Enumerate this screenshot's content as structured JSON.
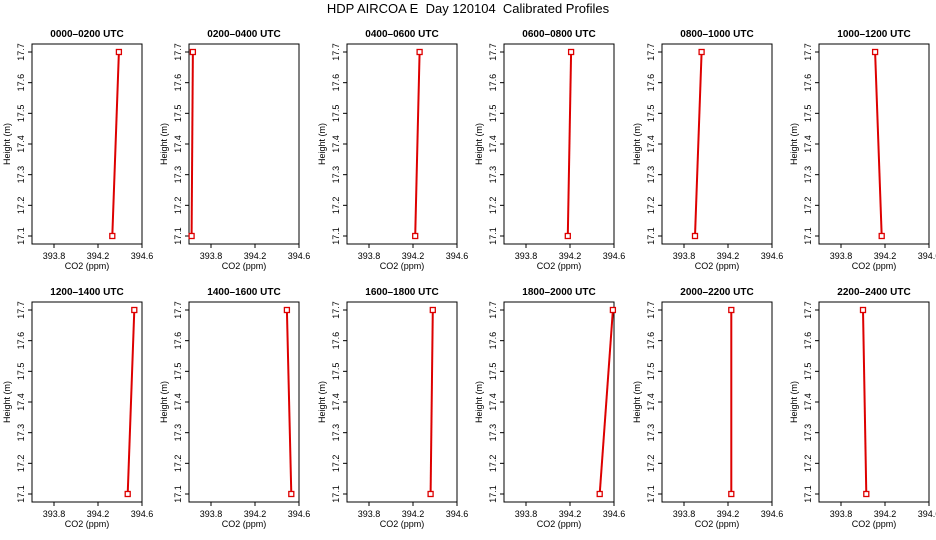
{
  "title": "HDP AIRCOA E  Day 120104  Calibrated Profiles",
  "colors": {
    "profile_line": "#dd0000",
    "axes": "#000000",
    "background": "#ffffff"
  },
  "chart_data": [
    {
      "type": "line",
      "title": "0000–0200 UTC",
      "xlabel": "CO2 (ppm)",
      "ylabel": "Height (m)",
      "xlim": [
        393.6,
        394.6
      ],
      "ylim": [
        17.1,
        17.7
      ],
      "xticks": [
        "393.8",
        "394.2",
        "394.6"
      ],
      "yticks": [
        "17.1",
        "17.2",
        "17.3",
        "17.4",
        "17.5",
        "17.6",
        "17.7"
      ],
      "series": [
        {
          "x": [
            394.33,
            394.39
          ],
          "y": [
            17.1,
            17.7
          ]
        }
      ]
    },
    {
      "type": "line",
      "title": "0200–0400 UTC",
      "xlabel": "CO2 (ppm)",
      "ylabel": "Height (m)",
      "xlim": [
        393.75,
        394.6
      ],
      "ylim": [
        17.1,
        17.7
      ],
      "xticks": [
        "393.8",
        "394.2",
        "394.6"
      ],
      "yticks": [
        "17.1",
        "17.2",
        "17.3",
        "17.4",
        "17.5",
        "17.6",
        "17.7"
      ],
      "series": [
        {
          "x": [
            393.77,
            393.78
          ],
          "y": [
            17.1,
            17.7
          ]
        }
      ]
    },
    {
      "type": "line",
      "title": "0400–0600 UTC",
      "xlabel": "CO2 (ppm)",
      "ylabel": "Height (m)",
      "xlim": [
        393.6,
        394.6
      ],
      "ylim": [
        17.1,
        17.7
      ],
      "xticks": [
        "393.8",
        "394.2",
        "394.6"
      ],
      "yticks": [
        "17.1",
        "17.2",
        "17.3",
        "17.4",
        "17.5",
        "17.6",
        "17.7"
      ],
      "series": [
        {
          "x": [
            394.22,
            394.26
          ],
          "y": [
            17.1,
            17.7
          ]
        }
      ]
    },
    {
      "type": "line",
      "title": "0600–0800 UTC",
      "xlabel": "CO2 (ppm)",
      "ylabel": "Height (m)",
      "xlim": [
        393.6,
        394.6
      ],
      "ylim": [
        17.1,
        17.7
      ],
      "xticks": [
        "393.8",
        "394.2",
        "394.6"
      ],
      "yticks": [
        "17.1",
        "17.2",
        "17.3",
        "17.4",
        "17.5",
        "17.6",
        "17.7"
      ],
      "series": [
        {
          "x": [
            394.18,
            394.21
          ],
          "y": [
            17.1,
            17.7
          ]
        }
      ]
    },
    {
      "type": "line",
      "title": "0800–1000 UTC",
      "xlabel": "CO2 (ppm)",
      "ylabel": "Height (m)",
      "xlim": [
        393.6,
        394.6
      ],
      "ylim": [
        17.1,
        17.7
      ],
      "xticks": [
        "393.8",
        "394.2",
        "394.6"
      ],
      "yticks": [
        "17.1",
        "17.2",
        "17.3",
        "17.4",
        "17.5",
        "17.6",
        "17.7"
      ],
      "series": [
        {
          "x": [
            393.9,
            393.96
          ],
          "y": [
            17.1,
            17.7
          ]
        }
      ]
    },
    {
      "type": "line",
      "title": "1000–1200 UTC",
      "xlabel": "CO2 (ppm)",
      "ylabel": "Height (m)",
      "xlim": [
        393.6,
        394.6
      ],
      "ylim": [
        17.1,
        17.7
      ],
      "xticks": [
        "393.8",
        "394.2",
        "394.6"
      ],
      "yticks": [
        "17.1",
        "17.2",
        "17.3",
        "17.4",
        "17.5",
        "17.6",
        "17.7"
      ],
      "series": [
        {
          "x": [
            394.17,
            394.11
          ],
          "y": [
            17.1,
            17.7
          ]
        }
      ]
    },
    {
      "type": "line",
      "title": "1200–1400 UTC",
      "xlabel": "CO2 (ppm)",
      "ylabel": "Height (m)",
      "xlim": [
        393.6,
        394.6
      ],
      "ylim": [
        17.1,
        17.7
      ],
      "xticks": [
        "393.8",
        "394.2",
        "394.6"
      ],
      "yticks": [
        "17.1",
        "17.2",
        "17.3",
        "17.4",
        "17.5",
        "17.6",
        "17.7"
      ],
      "series": [
        {
          "x": [
            394.47,
            394.53
          ],
          "y": [
            17.1,
            17.7
          ]
        }
      ]
    },
    {
      "type": "line",
      "title": "1400–1600 UTC",
      "xlabel": "CO2 (ppm)",
      "ylabel": "Height (m)",
      "xlim": [
        393.6,
        394.6
      ],
      "ylim": [
        17.1,
        17.7
      ],
      "xticks": [
        "393.8",
        "394.2",
        "394.6"
      ],
      "yticks": [
        "17.1",
        "17.2",
        "17.3",
        "17.4",
        "17.5",
        "17.6",
        "17.7"
      ],
      "series": [
        {
          "x": [
            394.53,
            394.49
          ],
          "y": [
            17.1,
            17.7
          ]
        }
      ]
    },
    {
      "type": "line",
      "title": "1600–1800 UTC",
      "xlabel": "CO2 (ppm)",
      "ylabel": "Height (m)",
      "xlim": [
        393.6,
        394.6
      ],
      "ylim": [
        17.1,
        17.7
      ],
      "xticks": [
        "393.8",
        "394.2",
        "394.6"
      ],
      "yticks": [
        "17.1",
        "17.2",
        "17.3",
        "17.4",
        "17.5",
        "17.6",
        "17.7"
      ],
      "series": [
        {
          "x": [
            394.36,
            394.38
          ],
          "y": [
            17.1,
            17.7
          ]
        }
      ]
    },
    {
      "type": "line",
      "title": "1800–2000 UTC",
      "xlabel": "CO2 (ppm)",
      "ylabel": "Height (m)",
      "xlim": [
        393.6,
        394.6
      ],
      "ylim": [
        17.1,
        17.7
      ],
      "xticks": [
        "393.8",
        "394.2",
        "394.6"
      ],
      "yticks": [
        "17.1",
        "17.2",
        "17.3",
        "17.4",
        "17.5",
        "17.6",
        "17.7"
      ],
      "series": [
        {
          "x": [
            394.47,
            394.59
          ],
          "y": [
            17.1,
            17.7
          ]
        }
      ]
    },
    {
      "type": "line",
      "title": "2000–2200 UTC",
      "xlabel": "CO2 (ppm)",
      "ylabel": "Height (m)",
      "xlim": [
        393.6,
        394.6
      ],
      "ylim": [
        17.1,
        17.7
      ],
      "xticks": [
        "393.8",
        "394.2",
        "394.6"
      ],
      "yticks": [
        "17.1",
        "17.2",
        "17.3",
        "17.4",
        "17.5",
        "17.6",
        "17.7"
      ],
      "series": [
        {
          "x": [
            394.23,
            394.23
          ],
          "y": [
            17.1,
            17.7
          ]
        }
      ]
    },
    {
      "type": "line",
      "title": "2200–2400 UTC",
      "xlabel": "CO2 (ppm)",
      "ylabel": "Height (m)",
      "xlim": [
        393.6,
        394.6
      ],
      "ylim": [
        17.1,
        17.7
      ],
      "xticks": [
        "393.8",
        "394.2",
        "394.6"
      ],
      "yticks": [
        "17.1",
        "17.2",
        "17.3",
        "17.4",
        "17.5",
        "17.6",
        "17.7"
      ],
      "series": [
        {
          "x": [
            394.03,
            394.0
          ],
          "y": [
            17.1,
            17.7
          ]
        }
      ]
    }
  ]
}
